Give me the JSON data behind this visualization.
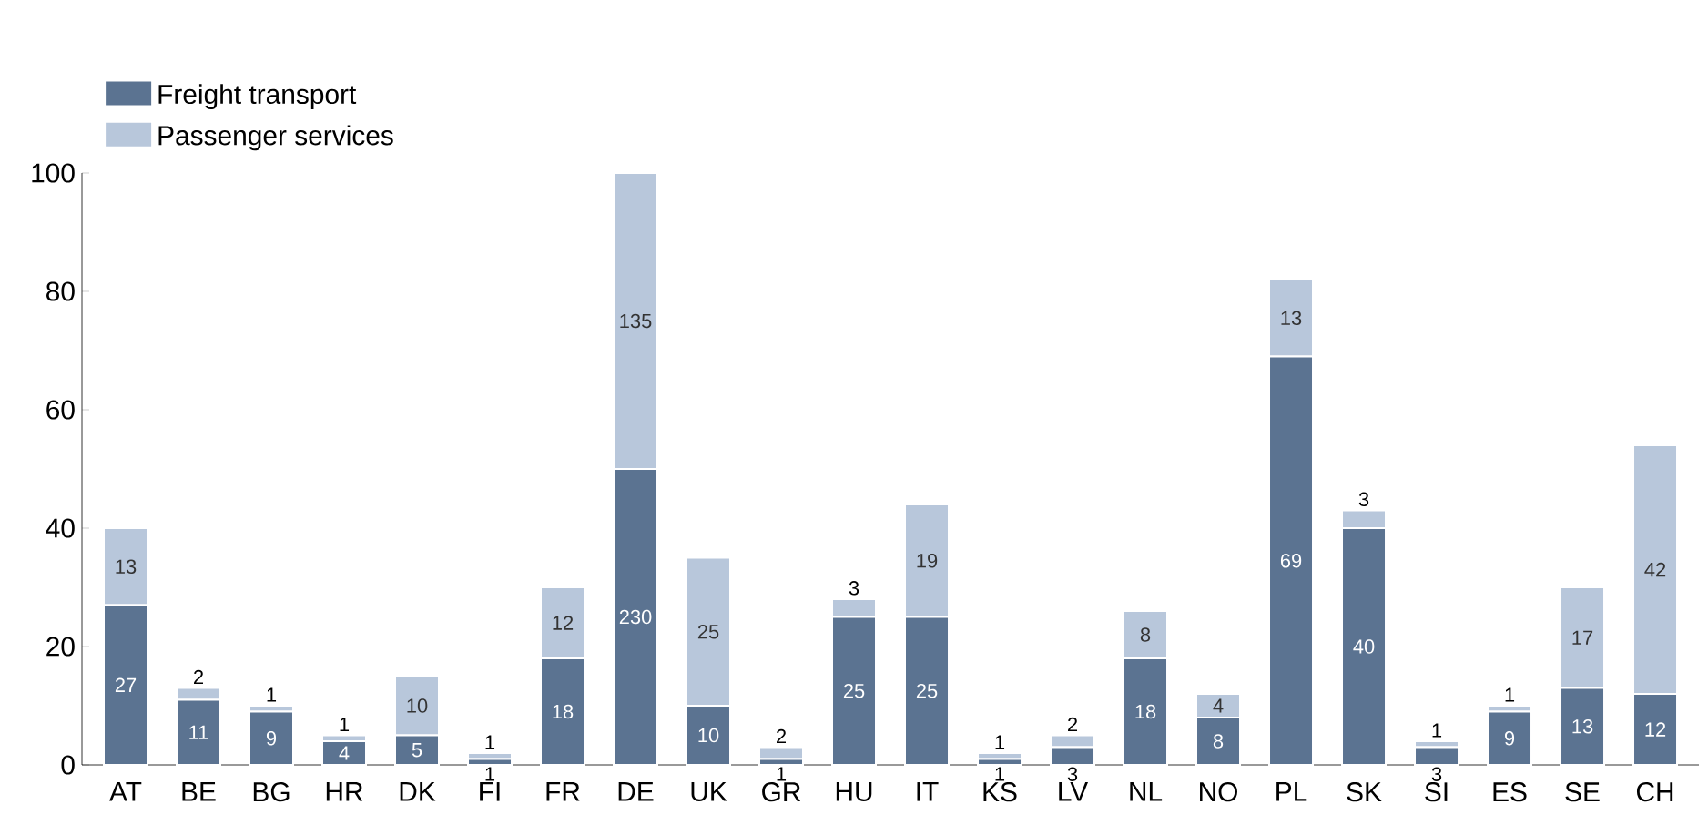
{
  "chart_data": {
    "type": "bar",
    "stacked": true,
    "categories": [
      "AT",
      "BE",
      "BG",
      "HR",
      "DK",
      "FI",
      "FR",
      "DE",
      "UK",
      "GR",
      "HU",
      "IT",
      "KS",
      "LV",
      "NL",
      "NO",
      "PL",
      "SK",
      "SI",
      "ES",
      "SE",
      "CH"
    ],
    "series": [
      {
        "name": "Freight transport",
        "color": "#5b7391",
        "values": [
          27,
          11,
          9,
          4,
          5,
          1,
          18,
          50,
          10,
          1,
          25,
          25,
          1,
          3,
          18,
          8,
          69,
          40,
          3,
          9,
          13,
          12
        ],
        "value_labels": [
          "27",
          "11",
          "9",
          "4",
          "5",
          "1",
          "18",
          null,
          "10",
          "1",
          "25",
          "25",
          "1",
          "3",
          "18",
          "8",
          "69",
          "40",
          "3",
          "9",
          "13",
          "12"
        ]
      },
      {
        "name": "Passenger services",
        "color": "#b8c7db",
        "values": [
          13,
          2,
          1,
          1,
          10,
          1,
          12,
          50,
          25,
          2,
          3,
          19,
          1,
          2,
          8,
          4,
          13,
          3,
          1,
          1,
          17,
          42
        ],
        "value_labels": [
          "13",
          "2",
          "1",
          "1",
          "10",
          "1",
          "12",
          null,
          "25",
          "2",
          "3",
          "19",
          "1",
          "2",
          "8",
          "4",
          "13",
          "3",
          "1",
          "1",
          "17",
          "42"
        ]
      }
    ],
    "annotations": [
      "230",
      "135"
    ],
    "ylim": [
      0,
      100
    ],
    "yticks": [
      0,
      20,
      40,
      60,
      80,
      100
    ],
    "legend": "top left",
    "grid": false
  }
}
